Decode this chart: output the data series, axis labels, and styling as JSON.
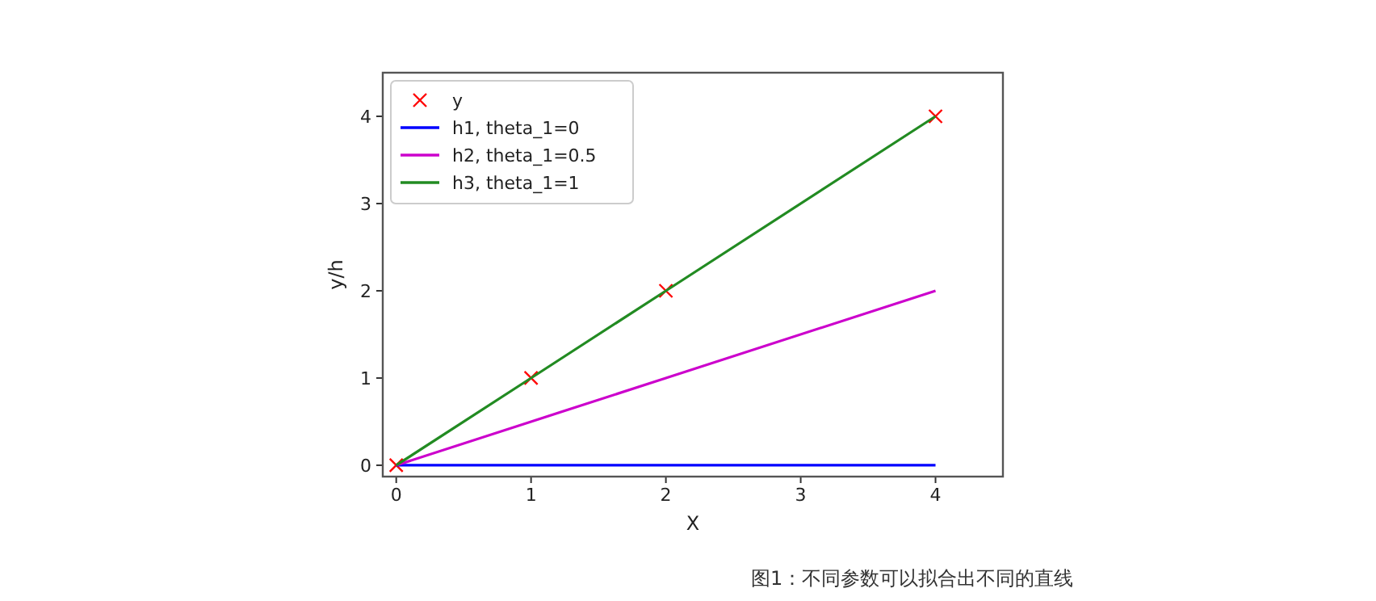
{
  "chart_data": {
    "type": "line",
    "xlabel": "X",
    "ylabel": "y/h",
    "annotations": [
      "图1：不同参数可以拟合出不同的直线"
    ],
    "x": [
      0,
      1,
      2,
      4
    ],
    "xlim": [
      -0.1,
      4.5
    ],
    "ylim": [
      -0.13,
      4.5
    ],
    "xticks": [
      0,
      1,
      2,
      3,
      4
    ],
    "yticks": [
      0,
      1,
      2,
      3,
      4
    ],
    "legend": "top left",
    "grid": false,
    "series": [
      {
        "name": "y",
        "type": "scatter",
        "marker": "cross",
        "color": "#ff0000",
        "values": [
          0,
          1,
          2,
          4
        ]
      },
      {
        "name": "h1, theta_1=0",
        "color": "#0000ff",
        "values": [
          0,
          0,
          0,
          0
        ]
      },
      {
        "name": "h2, theta_1=0.5",
        "color": "#cc00cc",
        "values": [
          0,
          0.5,
          1,
          2
        ]
      },
      {
        "name": "h3, theta_1=1",
        "color": "#228b22",
        "values": [
          0,
          1,
          2,
          4
        ]
      }
    ]
  }
}
